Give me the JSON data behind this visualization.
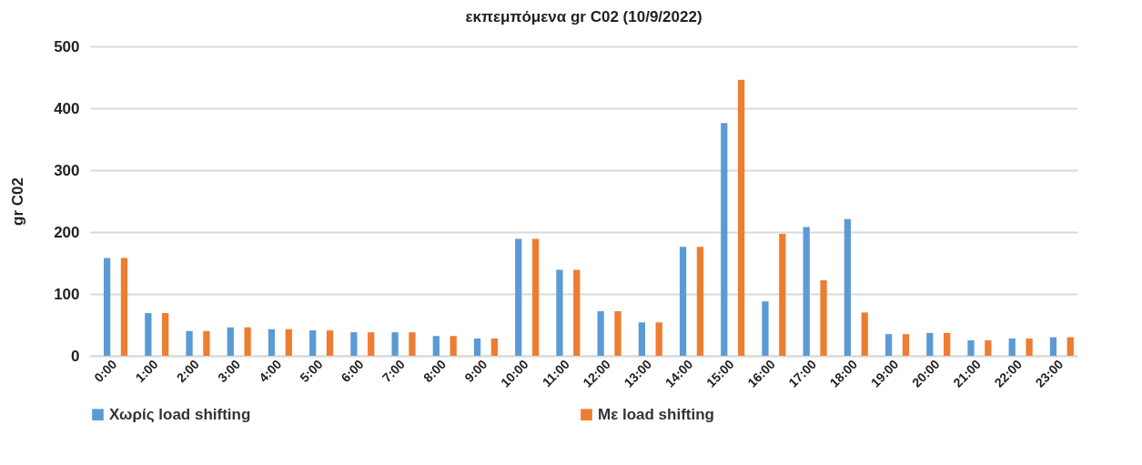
{
  "chart_data": {
    "type": "bar",
    "title": "εκπεμπόμενα gr C02 (10/9/2022)",
    "ylabel": "gr C02",
    "categories": [
      "0:00",
      "1:00",
      "2:00",
      "3:00",
      "4:00",
      "5:00",
      "6:00",
      "7:00",
      "8:00",
      "9:00",
      "10:00",
      "11:00",
      "12:00",
      "13:00",
      "14:00",
      "15:00",
      "16:00",
      "17:00",
      "18:00",
      "19:00",
      "20:00",
      "21:00",
      "22:00",
      "23:00"
    ],
    "series": [
      {
        "name": "Χωρίς load shifting",
        "color": "#5b9bd5",
        "values": [
          158,
          69,
          40,
          46,
          43,
          41,
          38,
          38,
          32,
          28,
          189,
          139,
          72,
          54,
          176,
          376,
          88,
          208,
          221,
          35,
          37,
          25,
          28,
          30
        ]
      },
      {
        "name": "Με load shifting",
        "color": "#ed7d31",
        "values": [
          158,
          69,
          40,
          46,
          43,
          41,
          38,
          38,
          32,
          28,
          189,
          139,
          72,
          54,
          176,
          446,
          197,
          122,
          70,
          35,
          37,
          25,
          28,
          30
        ]
      }
    ],
    "ylim": [
      0,
      500
    ],
    "yticks": [
      0,
      100,
      200,
      300,
      400,
      500
    ],
    "grid": "y",
    "legend": "bottom"
  }
}
